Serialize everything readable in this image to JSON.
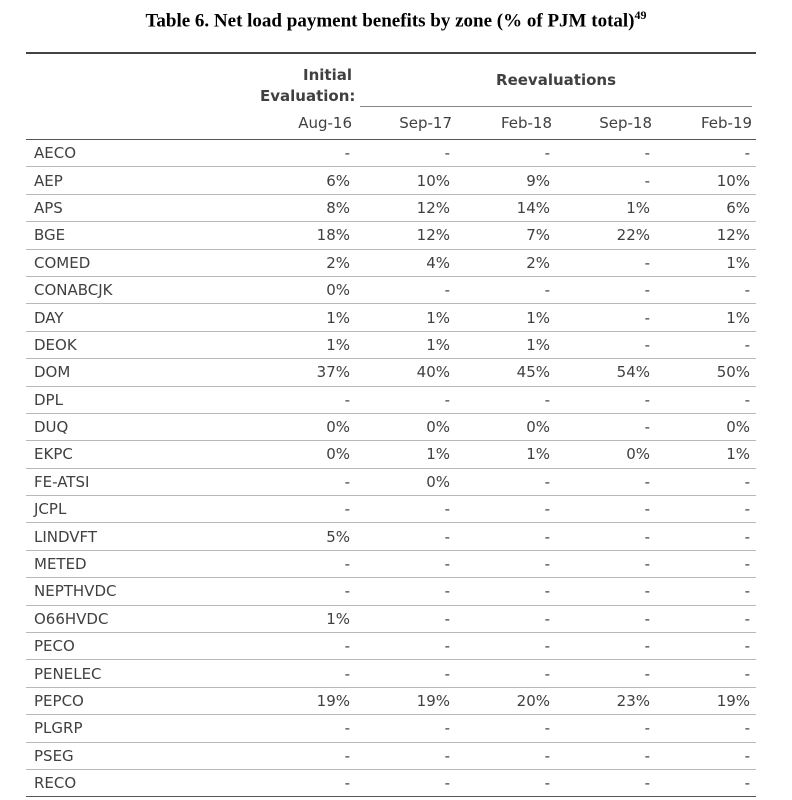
{
  "title": "Table 6. Net load payment benefits by zone (% of PJM total)",
  "title_footnote": "49",
  "header": {
    "initial_line1": "Initial",
    "initial_line2": "Evaluation:",
    "reevaluations": "Reevaluations",
    "columns": [
      "Aug-16",
      "Sep-17",
      "Feb-18",
      "Sep-18",
      "Feb-19"
    ]
  },
  "rows": [
    {
      "zone": "AECO",
      "values": [
        "-",
        "-",
        "-",
        "-",
        "-"
      ]
    },
    {
      "zone": "AEP",
      "values": [
        "6%",
        "10%",
        "9%",
        "-",
        "10%"
      ]
    },
    {
      "zone": "APS",
      "values": [
        "8%",
        "12%",
        "14%",
        "1%",
        "6%"
      ]
    },
    {
      "zone": "BGE",
      "values": [
        "18%",
        "12%",
        "7%",
        "22%",
        "12%"
      ]
    },
    {
      "zone": "COMED",
      "values": [
        "2%",
        "4%",
        "2%",
        "-",
        "1%"
      ]
    },
    {
      "zone": "CONABCJK",
      "values": [
        "0%",
        "-",
        "-",
        "-",
        "-"
      ]
    },
    {
      "zone": "DAY",
      "values": [
        "1%",
        "1%",
        "1%",
        "-",
        "1%"
      ]
    },
    {
      "zone": "DEOK",
      "values": [
        "1%",
        "1%",
        "1%",
        "-",
        "-"
      ]
    },
    {
      "zone": "DOM",
      "values": [
        "37%",
        "40%",
        "45%",
        "54%",
        "50%"
      ]
    },
    {
      "zone": "DPL",
      "values": [
        "-",
        "-",
        "-",
        "-",
        "-"
      ]
    },
    {
      "zone": "DUQ",
      "values": [
        "0%",
        "0%",
        "0%",
        "-",
        "0%"
      ]
    },
    {
      "zone": "EKPC",
      "values": [
        "0%",
        "1%",
        "1%",
        "0%",
        "1%"
      ]
    },
    {
      "zone": "FE-ATSI",
      "values": [
        "-",
        "0%",
        "-",
        "-",
        "-"
      ]
    },
    {
      "zone": "JCPL",
      "values": [
        "-",
        "-",
        "-",
        "-",
        "-"
      ]
    },
    {
      "zone": "LINDVFT",
      "values": [
        "5%",
        "-",
        "-",
        "-",
        "-"
      ]
    },
    {
      "zone": "METED",
      "values": [
        "-",
        "-",
        "-",
        "-",
        "-"
      ]
    },
    {
      "zone": "NEPTHVDC",
      "values": [
        "-",
        "-",
        "-",
        "-",
        "-"
      ]
    },
    {
      "zone": "O66HVDC",
      "values": [
        "1%",
        "-",
        "-",
        "-",
        "-"
      ]
    },
    {
      "zone": "PECO",
      "values": [
        "-",
        "-",
        "-",
        "-",
        "-"
      ]
    },
    {
      "zone": "PENELEC",
      "values": [
        "-",
        "-",
        "-",
        "-",
        "-"
      ]
    },
    {
      "zone": "PEPCO",
      "values": [
        "19%",
        "19%",
        "20%",
        "23%",
        "19%"
      ]
    },
    {
      "zone": "PLGRP",
      "values": [
        "-",
        "-",
        "-",
        "-",
        "-"
      ]
    },
    {
      "zone": "PSEG",
      "values": [
        "-",
        "-",
        "-",
        "-",
        "-"
      ]
    },
    {
      "zone": "RECO",
      "values": [
        "-",
        "-",
        "-",
        "-",
        "-"
      ]
    }
  ]
}
